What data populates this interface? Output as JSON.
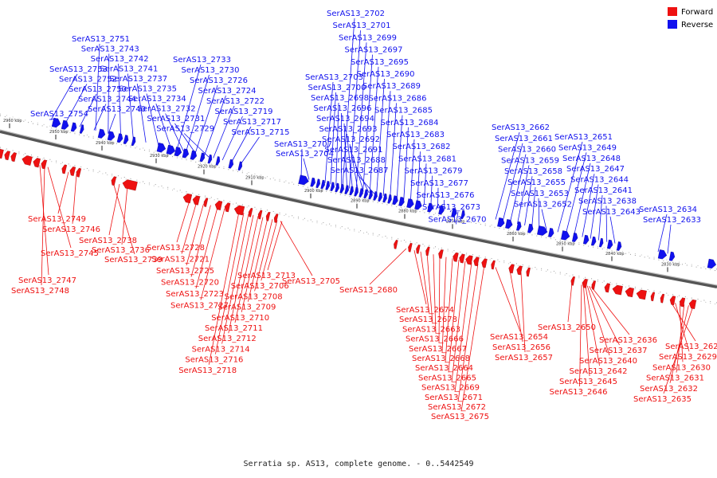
{
  "legend": {
    "forward_label": "Forward",
    "reverse_label": "Reverse"
  },
  "colors": {
    "forward": "#ee1111",
    "reverse": "#1111ee",
    "backbone": "#777777",
    "tick": "#222222"
  },
  "caption": "Serratia sp. AS13, complete genome. - 0..5442549",
  "kbp_ticks": [
    "2960 kbp",
    "2950 kbp",
    "2940 kbp",
    "2930 kbp",
    "2920 kbp",
    "2910 kbp",
    "2900 kbp",
    "2890 kbp",
    "2880 kbp",
    "2870 kbp",
    "2860 kbp",
    "2850 kbp",
    "2840 kbp",
    "2830 kbp"
  ],
  "reverse_labels": [
    "SerAS13_2702",
    "SerAS13_2701",
    "SerAS13_2699",
    "SerAS13_2697",
    "SerAS13_2695",
    "SerAS13_2690",
    "SerAS13_2689",
    "SerAS13_2686",
    "SerAS13_2685",
    "SerAS13_2684",
    "SerAS13_2683",
    "SerAS13_2682",
    "SerAS13_2681",
    "SerAS13_2679",
    "SerAS13_2677",
    "SerAS13_2676",
    "SerAS13_2673",
    "SerAS13_2670",
    "SerAS13_2703",
    "SerAS13_2700",
    "SerAS13_2698",
    "SerAS13_2696",
    "SerAS13_2694",
    "SerAS13_2693",
    "SerAS13_2692",
    "SerAS13_2691",
    "SerAS13_2688",
    "SerAS13_2687",
    "SerAS13_2707",
    "SerAS13_2704",
    "SerAS13_2751",
    "SerAS13_2743",
    "SerAS13_2742",
    "SerAS13_2741",
    "SerAS13_2737",
    "SerAS13_2735",
    "SerAS13_2734",
    "SerAS13_2732",
    "SerAS13_2731",
    "SerAS13_2729",
    "SerAS13_2733",
    "SerAS13_2730",
    "SerAS13_2726",
    "SerAS13_2724",
    "SerAS13_2722",
    "SerAS13_2719",
    "SerAS13_2717",
    "SerAS13_2715",
    "SerAS13_2753",
    "SerAS13_2752",
    "SerAS13_2750",
    "SerAS13_2744",
    "SerAS13_2740",
    "SerAS13_2754",
    "SerAS13_2662",
    "SerAS13_2661",
    "SerAS13_2660",
    "SerAS13_2659",
    "SerAS13_2658",
    "SerAS13_2655",
    "SerAS13_2653",
    "SerAS13_2652",
    "SerAS13_2651",
    "SerAS13_2649",
    "SerAS13_2648",
    "SerAS13_2647",
    "SerAS13_2644",
    "SerAS13_2641",
    "SerAS13_2638",
    "SerAS13_2643",
    "SerAS13_2634",
    "SerAS13_2633"
  ],
  "forward_labels": [
    "SerAS13_2749",
    "SerAS13_2746",
    "SerAS13_2745",
    "SerAS13_2747",
    "SerAS13_2748",
    "SerAS13_2738",
    "SerAS13_2736",
    "SerAS13_2739",
    "SerAS13_2728",
    "SerAS13_2721",
    "SerAS13_2725",
    "SerAS13_2720",
    "SerAS13_2723",
    "SerAS13_2727",
    "SerAS13_2713",
    "SerAS13_2706",
    "SerAS13_2708",
    "SerAS13_2709",
    "SerAS13_2710",
    "SerAS13_2711",
    "SerAS13_2712",
    "SerAS13_2714",
    "SerAS13_2716",
    "SerAS13_2718",
    "SerAS13_2705",
    "SerAS13_2680",
    "SerAS13_2674",
    "SerAS13_2678",
    "SerAS13_2663",
    "SerAS13_2666",
    "SerAS13_2667",
    "SerAS13_2668",
    "SerAS13_2664",
    "SerAS13_2665",
    "SerAS13_2669",
    "SerAS13_2671",
    "SerAS13_2672",
    "SerAS13_2675",
    "SerAS13_2654",
    "SerAS13_2656",
    "SerAS13_2657",
    "SerAS13_2650",
    "SerAS13_2636",
    "SerAS13_2637",
    "SerAS13_2640",
    "SerAS13_2642",
    "SerAS13_2645",
    "SerAS13_2646",
    "SerAS13_2628",
    "SerAS13_2629",
    "SerAS13_2630",
    "SerAS13_2631",
    "SerAS13_2632",
    "SerAS13_2635"
  ]
}
